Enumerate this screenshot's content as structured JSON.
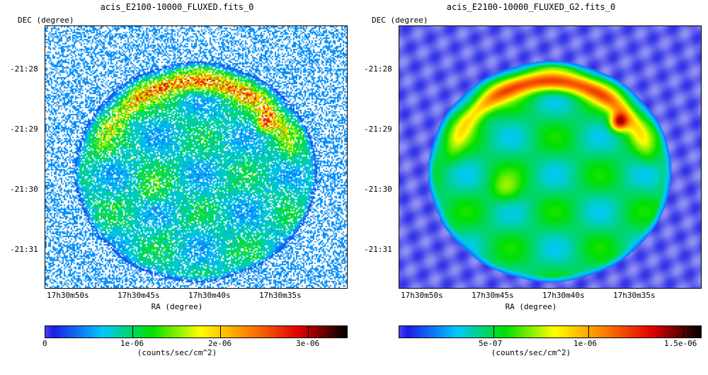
{
  "left": {
    "title": "acis_E2100-10000_FLUXED.fits_0",
    "ylabel": "DEC (degree)",
    "xlabel": "RA (degree)",
    "yticks": [
      "-21:28",
      "-21:29",
      "-21:30",
      "-21:31"
    ],
    "xticks": [
      "17h30m50s",
      "17h30m45s",
      "17h30m40s",
      "17h30m35s"
    ],
    "colorbar": {
      "label": "(counts/sec/cm^2)",
      "ticks": [
        "0",
        "1e-06",
        "2e-06",
        "3e-06"
      ],
      "range": [
        0,
        3.4e-06
      ]
    }
  },
  "right": {
    "title": "acis_E2100-10000_FLUXED_G2.fits_0",
    "ylabel": "DEC (degree)",
    "xlabel": "RA (degree)",
    "yticks": [
      "-21:28",
      "-21:29",
      "-21:30",
      "-21:31"
    ],
    "xticks": [
      "17h30m50s",
      "17h30m45s",
      "17h30m40s",
      "17h30m35s"
    ],
    "colorbar": {
      "label": "(counts/sec/cm^2)",
      "ticks": [
        "5e-07",
        "1e-06",
        "1.5e-06"
      ],
      "range": [
        0,
        1.6e-06
      ]
    }
  },
  "colormap": [
    "#ffffff",
    "#1e1ee6",
    "#00c8ff",
    "#00e000",
    "#ffff00",
    "#ff8000",
    "#e00000",
    "#000000"
  ]
}
